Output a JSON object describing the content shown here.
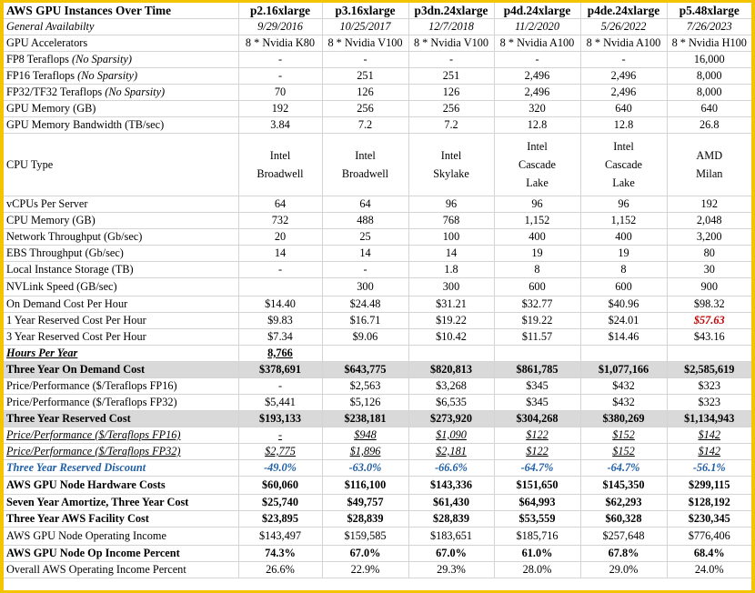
{
  "header": {
    "title": "AWS GPU Instances Over Time",
    "instances": [
      "p2.16xlarge",
      "p3.16xlarge",
      "p3dn.24xlarge",
      "p4d.24xlarge",
      "p4de.24xlarge",
      "p5.48xlarge"
    ]
  },
  "rows": {
    "ga": {
      "label": "General Availabilty",
      "values": [
        "9/29/2016",
        "10/25/2017",
        "12/7/2018",
        "11/2/2020",
        "5/26/2022",
        "7/26/2023"
      ]
    },
    "gpu": {
      "label": "GPU Accelerators",
      "values": [
        "8 * Nvidia K80",
        "8 * Nvidia V100",
        "8 * Nvidia V100",
        "8 * Nvidia A100",
        "8 * Nvidia A100",
        "8 * Nvidia H100"
      ]
    },
    "fp8": {
      "label": "FP8 Teraflops",
      "note": "(No Sparsity)",
      "values": [
        "-",
        "-",
        "-",
        "-",
        "-",
        "16,000"
      ]
    },
    "fp16": {
      "label": "FP16 Teraflops",
      "note": "(No Sparsity)",
      "values": [
        "-",
        "251",
        "251",
        "2,496",
        "2,496",
        "8,000"
      ]
    },
    "fp32": {
      "label": "FP32/TF32 Teraflops",
      "note": "(No Sparsity)",
      "values": [
        "70",
        "126",
        "126",
        "2,496",
        "2,496",
        "8,000"
      ]
    },
    "gpumem": {
      "label": "GPU Memory (GB)",
      "values": [
        "192",
        "256",
        "256",
        "320",
        "640",
        "640"
      ]
    },
    "gpubw": {
      "label": "GPU Memory Bandwidth (TB/sec)",
      "values": [
        "3.84",
        "7.2",
        "7.2",
        "12.8",
        "12.8",
        "26.8"
      ]
    },
    "cpu": {
      "label": "CPU Type",
      "values": [
        [
          "Intel",
          "Broadwell"
        ],
        [
          "Intel",
          "Broadwell"
        ],
        [
          "Intel",
          "Skylake"
        ],
        [
          "Intel",
          "Cascade",
          "Lake"
        ],
        [
          "Intel",
          "Cascade",
          "Lake"
        ],
        [
          "AMD",
          "Milan"
        ]
      ]
    },
    "vcpu": {
      "label": "vCPUs Per Server",
      "values": [
        "64",
        "64",
        "96",
        "96",
        "96",
        "192"
      ]
    },
    "cpumem": {
      "label": "CPU Memory (GB)",
      "values": [
        "732",
        "488",
        "768",
        "1,152",
        "1,152",
        "2,048"
      ]
    },
    "net": {
      "label": "Network Throughput (Gb/sec)",
      "values": [
        "20",
        "25",
        "100",
        "400",
        "400",
        "3,200"
      ]
    },
    "ebs": {
      "label": "EBS Throughput (Gb/sec)",
      "values": [
        "14",
        "14",
        "14",
        "19",
        "19",
        "80"
      ]
    },
    "storage": {
      "label": "Local Instance Storage (TB)",
      "values": [
        "-",
        "-",
        "1.8",
        "8",
        "8",
        "30"
      ]
    },
    "nvlink": {
      "label": "NVLink Speed (GB/sec)",
      "values": [
        "",
        "300",
        "300",
        "600",
        "600",
        "900"
      ]
    },
    "ondemand": {
      "label": "On Demand Cost Per Hour",
      "values": [
        "$14.40",
        "$24.48",
        "$31.21",
        "$32.77",
        "$40.96",
        "$98.32"
      ]
    },
    "res1": {
      "label": "1 Year Reserved Cost Per Hour",
      "values": [
        "$9.83",
        "$16.71",
        "$19.22",
        "$19.22",
        "$24.01",
        "$57.63"
      ]
    },
    "res3": {
      "label": "3 Year Reserved Cost Per Hour",
      "values": [
        "$7.34",
        "$9.06",
        "$10.42",
        "$11.57",
        "$14.46",
        "$43.16"
      ]
    },
    "hpy": {
      "label": "Hours Per Year",
      "value": "8,766"
    },
    "tyod": {
      "label": "Three Year On Demand Cost",
      "values": [
        "$378,691",
        "$643,775",
        "$820,813",
        "$861,785",
        "$1,077,166",
        "$2,585,619"
      ]
    },
    "ppod16": {
      "label": "Price/Performance ($/Teraflops FP16)",
      "values": [
        "-",
        "$2,563",
        "$3,268",
        "$345",
        "$432",
        "$323"
      ]
    },
    "ppod32": {
      "label": "Price/Performance ($/Teraflops FP32)",
      "values": [
        "$5,441",
        "$5,126",
        "$6,535",
        "$345",
        "$432",
        "$323"
      ]
    },
    "tyres": {
      "label": "Three Year Reserved Cost",
      "values": [
        "$193,133",
        "$238,181",
        "$273,920",
        "$304,268",
        "$380,269",
        "$1,134,943"
      ]
    },
    "ppres16": {
      "label": "Price/Performance ($/Teraflops FP16)",
      "values": [
        "-",
        "$948",
        "$1,090",
        "$122",
        "$152",
        "$142"
      ]
    },
    "ppres32": {
      "label": "Price/Performance ($/Teraflops FP32)",
      "values": [
        "$2,775",
        "$1,896",
        "$2,181",
        "$122",
        "$152",
        "$142"
      ]
    },
    "discount": {
      "label": "Three Year Reserved Discount",
      "values": [
        "-49.0%",
        "-63.0%",
        "-66.6%",
        "-64.7%",
        "-64.7%",
        "-56.1%"
      ]
    },
    "hw": {
      "label": "AWS GPU Node Hardware Costs",
      "values": [
        "$60,060",
        "$116,100",
        "$143,336",
        "$151,650",
        "$145,350",
        "$299,115"
      ]
    },
    "amort": {
      "label": "Seven Year Amortize, Three Year Cost",
      "values": [
        "$25,740",
        "$49,757",
        "$61,430",
        "$64,993",
        "$62,293",
        "$128,192"
      ]
    },
    "facility": {
      "label": "Three Year AWS Facility Cost",
      "values": [
        "$23,895",
        "$28,839",
        "$28,839",
        "$53,559",
        "$60,328",
        "$230,345"
      ]
    },
    "opinc": {
      "label": "AWS GPU Node Operating Income",
      "values": [
        "$143,497",
        "$159,585",
        "$183,651",
        "$185,716",
        "$257,648",
        "$776,406"
      ]
    },
    "oppct": {
      "label": "AWS GPU Node Op Income Percent",
      "values": [
        "74.3%",
        "67.0%",
        "67.0%",
        "61.0%",
        "67.8%",
        "68.4%"
      ]
    },
    "overall": {
      "label": "Overall AWS Operating Income Percent",
      "values": [
        "26.6%",
        "22.9%",
        "29.3%",
        "28.0%",
        "29.0%",
        "24.0%"
      ]
    }
  },
  "colors": {
    "frame": "#f5c400",
    "gray": "#d9d9d9",
    "blue": "#1f5fa6",
    "red": "#c00000"
  }
}
